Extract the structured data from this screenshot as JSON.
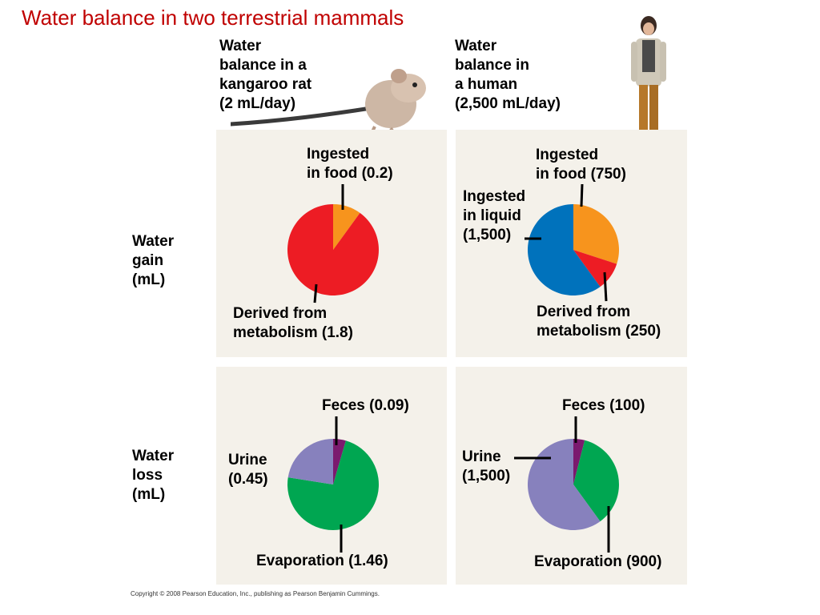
{
  "title": "Water balance in two terrestrial mammals",
  "headers": {
    "rat": "Water\nbalance in a\nkangaroo rat\n(2 mL/day)",
    "human": "Water\nbalance in\na human\n(2,500 mL/day)"
  },
  "rows": {
    "gain": "Water\ngain\n(mL)",
    "loss": "Water\nloss\n(mL)"
  },
  "copyright": "Copyright © 2008 Pearson Education, Inc., publishing as Pearson Benjamin Cummings.",
  "colors": {
    "title": "#c00000",
    "panel": "#f4f1ea",
    "ingested_food": "#f7941d",
    "metabolism": "#ed1c24",
    "liquid": "#0072bc",
    "urine": "#8781bd",
    "feces": "#7b1a6e",
    "evaporation": "#00a651"
  },
  "chart_data": [
    {
      "type": "pie",
      "id": "rat-gain",
      "slices": [
        {
          "label": "Ingested\nin food (0.2)",
          "value": 0.2,
          "color": "#f7941d"
        },
        {
          "label": "Derived from\nmetabolism (1.8)",
          "value": 1.8,
          "color": "#ed1c24"
        }
      ]
    },
    {
      "type": "pie",
      "id": "human-gain",
      "slices": [
        {
          "label": "Ingested\nin food (750)",
          "value": 750,
          "color": "#f7941d"
        },
        {
          "label": "Derived from\nmetabolism (250)",
          "value": 250,
          "color": "#ed1c24"
        },
        {
          "label": "Ingested\nin liquid\n(1,500)",
          "value": 1500,
          "color": "#0072bc"
        }
      ]
    },
    {
      "type": "pie",
      "id": "rat-loss",
      "slices": [
        {
          "label": "Feces (0.09)",
          "value": 0.09,
          "color": "#7b1a6e"
        },
        {
          "label": "Evaporation (1.46)",
          "value": 1.46,
          "color": "#00a651"
        },
        {
          "label": "Urine\n(0.45)",
          "value": 0.45,
          "color": "#8781bd"
        }
      ]
    },
    {
      "type": "pie",
      "id": "human-loss",
      "slices": [
        {
          "label": "Feces (100)",
          "value": 100,
          "color": "#7b1a6e"
        },
        {
          "label": "Evaporation (900)",
          "value": 900,
          "color": "#00a651"
        },
        {
          "label": "Urine\n(1,500)",
          "value": 1500,
          "color": "#8781bd"
        }
      ]
    }
  ]
}
